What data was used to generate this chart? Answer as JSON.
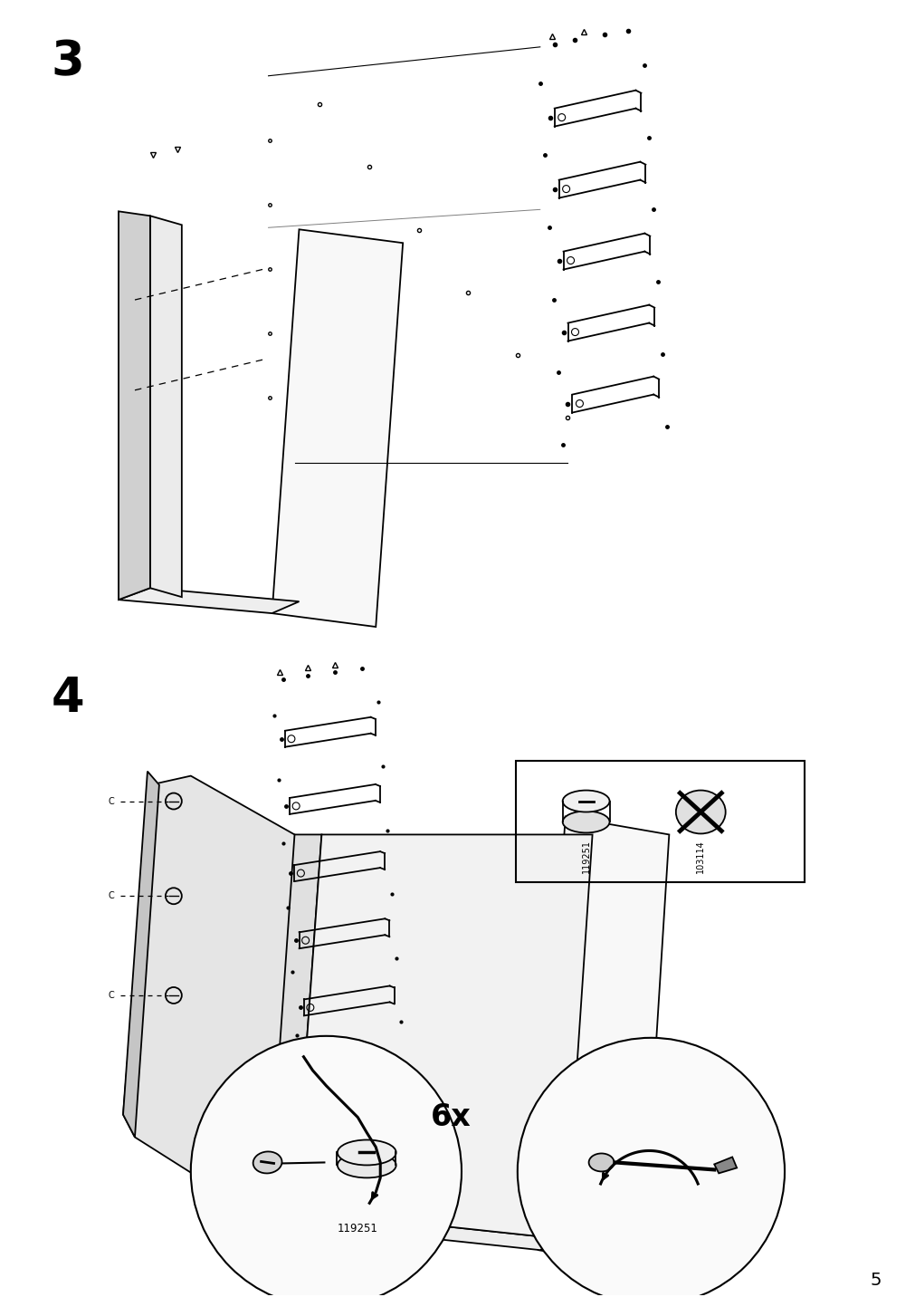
{
  "page_number": "5",
  "bg": "#ffffff",
  "lc": "#000000",
  "step3": "3",
  "step4": "4",
  "label_6x": "6x",
  "pn1": "119251",
  "pn2": "103114",
  "pn_bottom": "119251",
  "fig_w": 10.12,
  "fig_h": 14.32,
  "dpi": 100
}
